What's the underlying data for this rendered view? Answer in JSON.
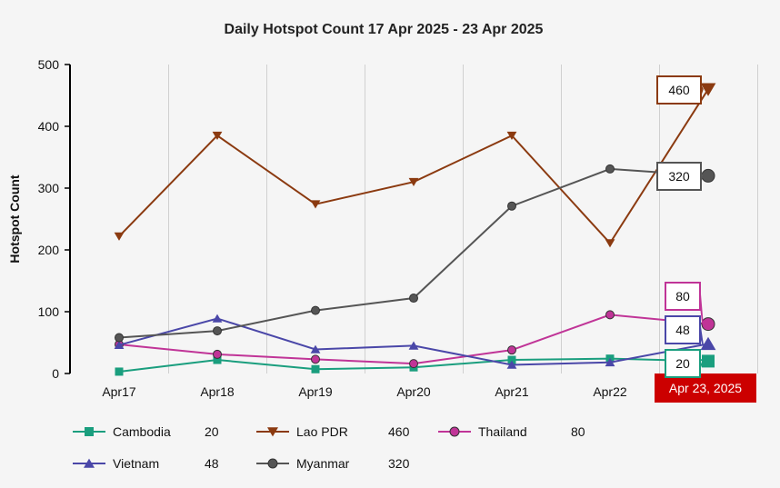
{
  "chart_data": {
    "type": "line",
    "title": "Daily Hotspot Count 17 Apr 2025 - 23 Apr 2025",
    "ylabel": "Hotspot Count",
    "xlabel": "",
    "ylim": [
      0,
      500
    ],
    "yticks": [
      0,
      100,
      200,
      300,
      400,
      500
    ],
    "categories": [
      "Apr17",
      "Apr18",
      "Apr19",
      "Apr20",
      "Apr21",
      "Apr22",
      "Apr 23, 2025"
    ],
    "highlighted_category": "Apr 23, 2025",
    "grid": "vertical",
    "legend_position": "bottom",
    "series": [
      {
        "name": "Cambodia",
        "color": "#1a9e7e",
        "marker": "square",
        "values": [
          3,
          22,
          7,
          10,
          22,
          24,
          20
        ],
        "last_label": "20"
      },
      {
        "name": "Lao PDR",
        "color": "#8b3a10",
        "marker": "triangle-down",
        "values": [
          222,
          385,
          274,
          310,
          385,
          211,
          460
        ],
        "last_label": "460"
      },
      {
        "name": "Thailand",
        "color": "#c03497",
        "marker": "circle",
        "values": [
          47,
          31,
          23,
          16,
          38,
          95,
          80
        ],
        "last_label": "80"
      },
      {
        "name": "Vietnam",
        "color": "#4a47a8",
        "marker": "triangle-up",
        "values": [
          46,
          89,
          39,
          45,
          14,
          18,
          48
        ],
        "last_label": "48"
      },
      {
        "name": "Myanmar",
        "color": "#555555",
        "marker": "circle",
        "values": [
          58,
          69,
          102,
          122,
          271,
          331,
          320
        ],
        "last_label": "320"
      }
    ]
  },
  "legend": [
    {
      "name": "Cambodia",
      "value": "20",
      "color": "#1a9e7e",
      "marker": "square"
    },
    {
      "name": "Lao PDR",
      "value": "460",
      "color": "#8b3a10",
      "marker": "triangle-down"
    },
    {
      "name": "Thailand",
      "value": "80",
      "color": "#c03497",
      "marker": "circle"
    },
    {
      "name": "Vietnam",
      "value": "48",
      "color": "#4a47a8",
      "marker": "triangle-up"
    },
    {
      "name": "Myanmar",
      "value": "320",
      "color": "#555555",
      "marker": "circle"
    }
  ],
  "colors": {
    "background": "#f5f5f5",
    "highlight": "#cc0000",
    "axis": "#000000",
    "grid": "#d0d0d0"
  }
}
